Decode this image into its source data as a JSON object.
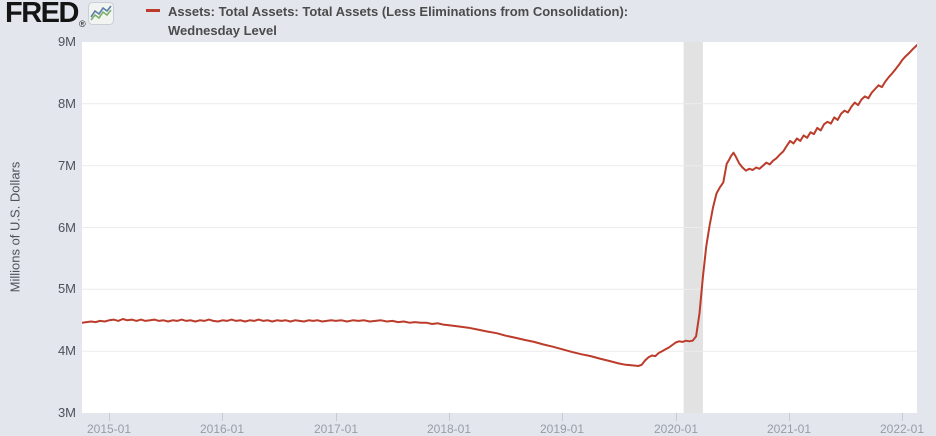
{
  "header": {
    "logo_text": "FRED",
    "logo_registered": "®",
    "legend": {
      "line1": "Assets: Total Assets: Total Assets (Less Eliminations from Consolidation):",
      "line2": "Wednesday Level"
    }
  },
  "colors": {
    "page_bg": "#e3e7ed",
    "plot_bg": "#ffffff",
    "grid": "#ececec",
    "recession_band": "#e2e2e2",
    "line": "#bc3c2b",
    "text_dark": "#4b4b4b",
    "axis_text": "#4d525b"
  },
  "chart_data": {
    "type": "line",
    "title": "Assets: Total Assets: Total Assets (Less Eliminations from Consolidation): Wednesday Level",
    "xlabel": "",
    "ylabel": "Millions of U.S. Dollars",
    "x_unit": "decimal_year",
    "xlim": [
      2014.76,
      2022.13
    ],
    "ylim": [
      3,
      9
    ],
    "grid": true,
    "legend_position": "top",
    "y_ticks": [
      {
        "value": 9,
        "label": "9M"
      },
      {
        "value": 8,
        "label": "8M"
      },
      {
        "value": 7,
        "label": "7M"
      },
      {
        "value": 6,
        "label": "6M"
      },
      {
        "value": 5,
        "label": "5M"
      },
      {
        "value": 4,
        "label": "4M"
      },
      {
        "value": 3,
        "label": "3M"
      }
    ],
    "x_ticks": [
      {
        "t": 2015,
        "label": "2015-01"
      },
      {
        "t": 2016,
        "label": "2016-01"
      },
      {
        "t": 2017,
        "label": "2017-01"
      },
      {
        "t": 2018,
        "label": "2018-01"
      },
      {
        "t": 2019,
        "label": "2019-01"
      },
      {
        "t": 2020,
        "label": "2020-01"
      },
      {
        "t": 2021,
        "label": "2021-01"
      },
      {
        "t": 2022,
        "label": "2022-01"
      }
    ],
    "recession_bands": [
      {
        "start": 2020.07,
        "end": 2020.24
      }
    ],
    "series": [
      {
        "name": "Assets: Total Assets: Total Assets (Less Eliminations from Consolidation): Wednesday Level",
        "color": "#bc3c2b",
        "points": [
          [
            2014.76,
            4.46
          ],
          [
            2014.8,
            4.47
          ],
          [
            2014.84,
            4.48
          ],
          [
            2014.88,
            4.47
          ],
          [
            2014.92,
            4.49
          ],
          [
            2014.96,
            4.48
          ],
          [
            2015.0,
            4.5
          ],
          [
            2015.04,
            4.51
          ],
          [
            2015.08,
            4.49
          ],
          [
            2015.12,
            4.52
          ],
          [
            2015.16,
            4.5
          ],
          [
            2015.2,
            4.51
          ],
          [
            2015.24,
            4.49
          ],
          [
            2015.28,
            4.51
          ],
          [
            2015.32,
            4.49
          ],
          [
            2015.36,
            4.5
          ],
          [
            2015.4,
            4.51
          ],
          [
            2015.44,
            4.49
          ],
          [
            2015.48,
            4.5
          ],
          [
            2015.52,
            4.48
          ],
          [
            2015.56,
            4.5
          ],
          [
            2015.6,
            4.49
          ],
          [
            2015.64,
            4.51
          ],
          [
            2015.68,
            4.49
          ],
          [
            2015.72,
            4.5
          ],
          [
            2015.76,
            4.48
          ],
          [
            2015.8,
            4.5
          ],
          [
            2015.84,
            4.49
          ],
          [
            2015.88,
            4.51
          ],
          [
            2015.92,
            4.49
          ],
          [
            2015.96,
            4.48
          ],
          [
            2016.0,
            4.5
          ],
          [
            2016.04,
            4.49
          ],
          [
            2016.08,
            4.51
          ],
          [
            2016.12,
            4.49
          ],
          [
            2016.16,
            4.5
          ],
          [
            2016.2,
            4.48
          ],
          [
            2016.24,
            4.5
          ],
          [
            2016.28,
            4.49
          ],
          [
            2016.32,
            4.51
          ],
          [
            2016.36,
            4.49
          ],
          [
            2016.4,
            4.5
          ],
          [
            2016.44,
            4.48
          ],
          [
            2016.48,
            4.5
          ],
          [
            2016.52,
            4.49
          ],
          [
            2016.56,
            4.5
          ],
          [
            2016.6,
            4.48
          ],
          [
            2016.64,
            4.5
          ],
          [
            2016.68,
            4.49
          ],
          [
            2016.72,
            4.48
          ],
          [
            2016.76,
            4.5
          ],
          [
            2016.8,
            4.49
          ],
          [
            2016.84,
            4.5
          ],
          [
            2016.88,
            4.48
          ],
          [
            2016.92,
            4.49
          ],
          [
            2016.96,
            4.5
          ],
          [
            2017.0,
            4.49
          ],
          [
            2017.05,
            4.5
          ],
          [
            2017.1,
            4.48
          ],
          [
            2017.15,
            4.5
          ],
          [
            2017.2,
            4.49
          ],
          [
            2017.25,
            4.5
          ],
          [
            2017.3,
            4.48
          ],
          [
            2017.35,
            4.49
          ],
          [
            2017.4,
            4.5
          ],
          [
            2017.45,
            4.48
          ],
          [
            2017.5,
            4.49
          ],
          [
            2017.55,
            4.47
          ],
          [
            2017.6,
            4.48
          ],
          [
            2017.65,
            4.46
          ],
          [
            2017.7,
            4.47
          ],
          [
            2017.75,
            4.46
          ],
          [
            2017.8,
            4.46
          ],
          [
            2017.85,
            4.44
          ],
          [
            2017.9,
            4.45
          ],
          [
            2017.95,
            4.43
          ],
          [
            2018.0,
            4.42
          ],
          [
            2018.08,
            4.4
          ],
          [
            2018.17,
            4.38
          ],
          [
            2018.25,
            4.35
          ],
          [
            2018.33,
            4.32
          ],
          [
            2018.42,
            4.29
          ],
          [
            2018.5,
            4.25
          ],
          [
            2018.58,
            4.22
          ],
          [
            2018.67,
            4.18
          ],
          [
            2018.75,
            4.15
          ],
          [
            2018.83,
            4.11
          ],
          [
            2018.92,
            4.07
          ],
          [
            2019.0,
            4.03
          ],
          [
            2019.08,
            3.99
          ],
          [
            2019.17,
            3.95
          ],
          [
            2019.25,
            3.92
          ],
          [
            2019.33,
            3.88
          ],
          [
            2019.42,
            3.84
          ],
          [
            2019.5,
            3.8
          ],
          [
            2019.56,
            3.78
          ],
          [
            2019.62,
            3.77
          ],
          [
            2019.67,
            3.76
          ],
          [
            2019.7,
            3.78
          ],
          [
            2019.73,
            3.85
          ],
          [
            2019.76,
            3.9
          ],
          [
            2019.79,
            3.93
          ],
          [
            2019.82,
            3.92
          ],
          [
            2019.85,
            3.97
          ],
          [
            2019.88,
            4.0
          ],
          [
            2019.91,
            4.03
          ],
          [
            2019.94,
            4.06
          ],
          [
            2019.97,
            4.1
          ],
          [
            2020.0,
            4.14
          ],
          [
            2020.03,
            4.16
          ],
          [
            2020.06,
            4.15
          ],
          [
            2020.09,
            4.17
          ],
          [
            2020.12,
            4.16
          ],
          [
            2020.15,
            4.17
          ],
          [
            2020.18,
            4.24
          ],
          [
            2020.21,
            4.61
          ],
          [
            2020.24,
            5.2
          ],
          [
            2020.27,
            5.7
          ],
          [
            2020.3,
            6.04
          ],
          [
            2020.33,
            6.33
          ],
          [
            2020.36,
            6.55
          ],
          [
            2020.39,
            6.65
          ],
          [
            2020.42,
            6.73
          ],
          [
            2020.45,
            7.03
          ],
          [
            2020.47,
            7.09
          ],
          [
            2020.49,
            7.16
          ],
          [
            2020.51,
            7.21
          ],
          [
            2020.53,
            7.15
          ],
          [
            2020.56,
            7.04
          ],
          [
            2020.59,
            6.97
          ],
          [
            2020.62,
            6.92
          ],
          [
            2020.65,
            6.95
          ],
          [
            2020.68,
            6.93
          ],
          [
            2020.71,
            6.97
          ],
          [
            2020.74,
            6.95
          ],
          [
            2020.77,
            7.0
          ],
          [
            2020.8,
            7.05
          ],
          [
            2020.83,
            7.02
          ],
          [
            2020.86,
            7.08
          ],
          [
            2020.89,
            7.12
          ],
          [
            2020.92,
            7.18
          ],
          [
            2020.95,
            7.23
          ],
          [
            2020.98,
            7.32
          ],
          [
            2021.01,
            7.4
          ],
          [
            2021.04,
            7.36
          ],
          [
            2021.07,
            7.44
          ],
          [
            2021.1,
            7.4
          ],
          [
            2021.13,
            7.49
          ],
          [
            2021.16,
            7.45
          ],
          [
            2021.19,
            7.54
          ],
          [
            2021.22,
            7.51
          ],
          [
            2021.25,
            7.61
          ],
          [
            2021.28,
            7.57
          ],
          [
            2021.31,
            7.67
          ],
          [
            2021.34,
            7.71
          ],
          [
            2021.37,
            7.68
          ],
          [
            2021.4,
            7.78
          ],
          [
            2021.43,
            7.74
          ],
          [
            2021.46,
            7.84
          ],
          [
            2021.49,
            7.89
          ],
          [
            2021.52,
            7.86
          ],
          [
            2021.55,
            7.95
          ],
          [
            2021.58,
            8.02
          ],
          [
            2021.61,
            7.98
          ],
          [
            2021.64,
            8.07
          ],
          [
            2021.67,
            8.12
          ],
          [
            2021.7,
            8.09
          ],
          [
            2021.73,
            8.18
          ],
          [
            2021.76,
            8.24
          ],
          [
            2021.79,
            8.3
          ],
          [
            2021.82,
            8.27
          ],
          [
            2021.85,
            8.36
          ],
          [
            2021.88,
            8.43
          ],
          [
            2021.91,
            8.49
          ],
          [
            2021.94,
            8.56
          ],
          [
            2021.97,
            8.63
          ],
          [
            2022.0,
            8.71
          ],
          [
            2022.03,
            8.77
          ],
          [
            2022.06,
            8.82
          ],
          [
            2022.09,
            8.88
          ],
          [
            2022.13,
            8.95
          ]
        ]
      }
    ]
  }
}
